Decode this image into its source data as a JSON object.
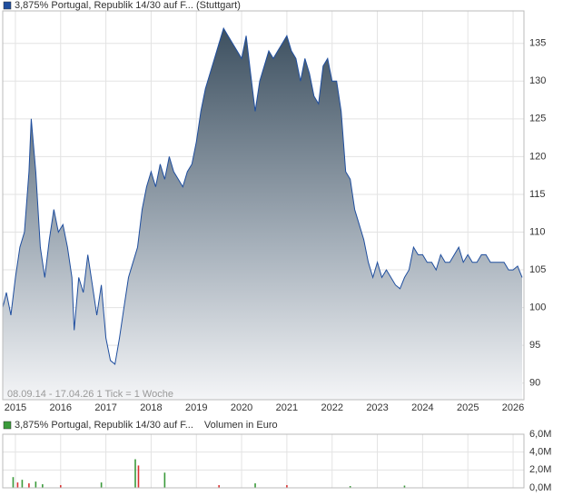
{
  "chart_data": [
    {
      "type": "area",
      "series": [
        {
          "name": "3,875% Portugal, Republik 14/30 auf F... (Stuttgart)",
          "color": "#1f4e9e",
          "x": [
            2014.72,
            2014.8,
            2014.9,
            2015.0,
            2015.1,
            2015.2,
            2015.3,
            2015.35,
            2015.45,
            2015.55,
            2015.65,
            2015.75,
            2015.85,
            2015.95,
            2016.05,
            2016.15,
            2016.25,
            2016.3,
            2016.4,
            2016.5,
            2016.6,
            2016.7,
            2016.8,
            2016.9,
            2017.0,
            2017.1,
            2017.2,
            2017.3,
            2017.4,
            2017.5,
            2017.6,
            2017.7,
            2017.8,
            2017.9,
            2018.0,
            2018.1,
            2018.2,
            2018.3,
            2018.4,
            2018.5,
            2018.6,
            2018.7,
            2018.8,
            2018.9,
            2019.0,
            2019.1,
            2019.2,
            2019.3,
            2019.4,
            2019.5,
            2019.6,
            2019.7,
            2019.8,
            2019.9,
            2020.0,
            2020.1,
            2020.2,
            2020.3,
            2020.4,
            2020.5,
            2020.6,
            2020.7,
            2020.8,
            2020.9,
            2021.0,
            2021.1,
            2021.2,
            2021.3,
            2021.4,
            2021.5,
            2021.6,
            2021.7,
            2021.8,
            2021.9,
            2022.0,
            2022.1,
            2022.2,
            2022.3,
            2022.4,
            2022.5,
            2022.6,
            2022.7,
            2022.8,
            2022.9,
            2023.0,
            2023.1,
            2023.2,
            2023.3,
            2023.4,
            2023.5,
            2023.6,
            2023.7,
            2023.8,
            2023.9,
            2024.0,
            2024.1,
            2024.2,
            2024.3,
            2024.4,
            2024.5,
            2024.6,
            2024.7,
            2024.8,
            2024.9,
            2025.0,
            2025.1,
            2025.2,
            2025.3,
            2025.4,
            2025.5,
            2025.6,
            2025.7,
            2025.8,
            2025.9,
            2026.0,
            2026.1,
            2026.2
          ],
          "values": [
            100,
            102,
            99,
            104,
            108,
            110,
            118,
            125,
            118,
            108,
            104,
            109,
            113,
            110,
            111,
            108,
            104,
            97,
            104,
            102,
            107,
            103,
            99,
            103,
            96,
            93,
            92.5,
            96,
            100,
            104,
            106,
            108,
            113,
            116,
            118,
            116,
            119,
            117,
            120,
            118,
            117,
            116,
            118,
            119,
            122,
            126,
            129,
            131,
            133,
            135,
            137,
            136,
            135,
            134,
            133,
            136,
            131,
            126,
            130,
            132,
            134,
            133,
            134,
            135,
            136,
            134,
            133,
            130,
            133,
            131,
            128,
            127,
            132,
            133,
            130,
            130,
            126,
            118,
            117,
            113,
            111,
            109,
            106,
            104,
            106,
            104,
            105,
            104,
            103,
            102.5,
            104,
            105,
            108,
            107,
            107,
            106,
            106,
            105,
            107,
            106,
            106,
            107,
            108,
            106,
            107,
            106,
            106,
            107,
            107,
            106,
            106,
            106,
            106,
            105,
            105,
            105.5,
            104
          ]
        }
      ],
      "xlim": [
        2014.72,
        2026.24
      ],
      "xticks": [
        2015,
        2016,
        2017,
        2018,
        2019,
        2020,
        2021,
        2022,
        2023,
        2024,
        2025,
        2026
      ],
      "ylim": [
        87.8,
        139.3
      ],
      "yticks": [
        90,
        95,
        100,
        105,
        110,
        115,
        120,
        125,
        130,
        135
      ],
      "grid": true,
      "annotation": "08.09.14 - 17.04.26   1 Tick = 1 Woche"
    },
    {
      "type": "bar",
      "series": [
        {
          "name": "3,875% Portugal, Republik 14/30 auf F...",
          "color": "#3a9a3a",
          "x": [
            2014.95,
            2015.05,
            2015.15,
            2015.3,
            2015.45,
            2015.6,
            2016.0,
            2016.9,
            2017.65,
            2017.72,
            2018.3,
            2019.5,
            2020.3,
            2021.0,
            2022.4,
            2023.6
          ],
          "values": [
            1200000,
            600000,
            900000,
            500000,
            700000,
            400000,
            300000,
            600000,
            3200000,
            2500000,
            1700000,
            300000,
            500000,
            300000,
            200000,
            250000
          ],
          "colors": [
            "#3a9a3a",
            "#d93030",
            "#3a9a3a",
            "#d93030",
            "#3a9a3a",
            "#3a9a3a",
            "#d93030",
            "#3a9a3a",
            "#3a9a3a",
            "#d93030",
            "#3a9a3a",
            "#d93030",
            "#3a9a3a",
            "#d93030",
            "#3a9a3a",
            "#3a9a3a"
          ]
        }
      ],
      "y_label": "Volumen in Euro",
      "xlim": [
        2014.72,
        2026.24
      ],
      "xticks": [
        2015,
        2016,
        2017,
        2018,
        2019,
        2020,
        2021,
        2022,
        2023,
        2024,
        2025,
        2026
      ],
      "ylim": [
        0,
        6000000
      ],
      "yticks": [
        {
          "value": 0,
          "label": "0,0M"
        },
        {
          "value": 2000000,
          "label": "2,0M"
        },
        {
          "value": 4000000,
          "label": "4,0M"
        },
        {
          "value": 6000000,
          "label": "6,0M"
        }
      ],
      "grid": true
    }
  ]
}
